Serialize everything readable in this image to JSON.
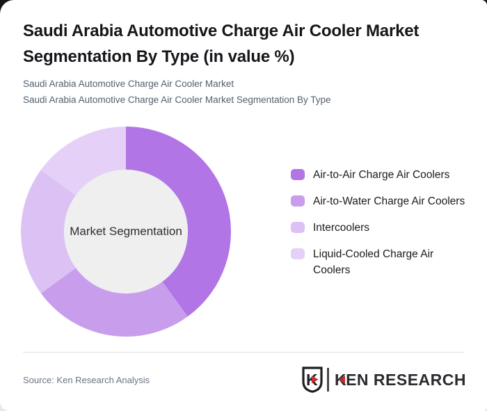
{
  "page": {
    "title": "Saudi Arabia Automotive Charge Air Cooler Market Segmentation By Type (in value %)",
    "subtitle_line1": "Saudi Arabia Automotive Charge Air Cooler Market",
    "subtitle_line2": "Saudi Arabia Automotive Charge Air Cooler Market Segmentation By Type",
    "source": "Source: Ken Research Analysis"
  },
  "logo": {
    "shield_letter": "K",
    "mark_letter": "K",
    "mark_rest": "EN RESEARCH",
    "accent_color": "#C13030",
    "text_color": "#292B2F"
  },
  "chart_data": {
    "type": "pie",
    "donut": true,
    "title": "Saudi Arabia Automotive Charge Air Cooler Market Segmentation By Type (in value %)",
    "center_label": "Market Segmentation",
    "categories": [
      "Air-to-Air Charge Air Coolers",
      "Air-to-Water Charge Air Coolers",
      "Intercoolers",
      "Liquid-Cooled Charge Air Coolers"
    ],
    "values": [
      40,
      25,
      20,
      15
    ],
    "unit": "%",
    "colors": [
      "#B175E6",
      "#C89EEC",
      "#DCC2F4",
      "#E5D1F8"
    ],
    "hole_color": "#EFEFEF",
    "inner_radius_ratio": 0.59,
    "start_angle_deg": 0,
    "direction": "clockwise",
    "legend_position": "right",
    "grid": false
  }
}
